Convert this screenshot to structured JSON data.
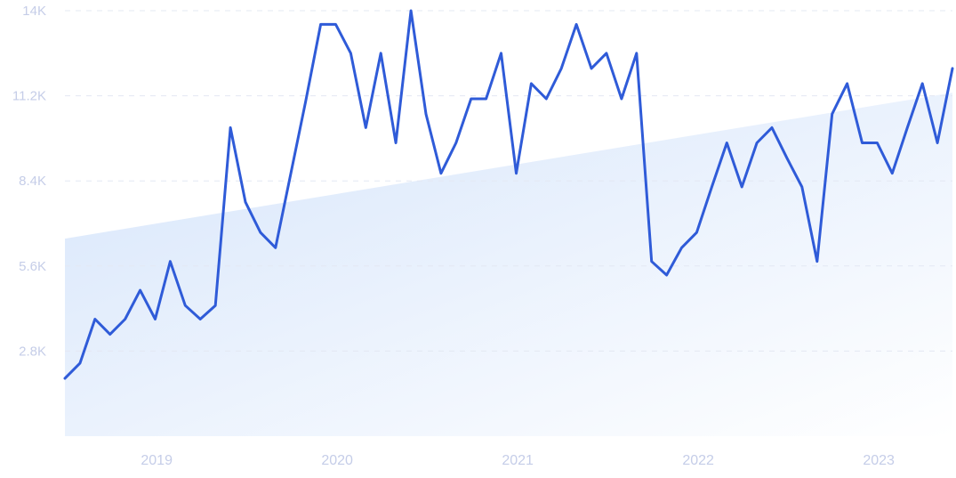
{
  "chart_data": {
    "type": "line",
    "title": "",
    "xlabel": "",
    "ylabel": "",
    "ylim": [
      0,
      14000
    ],
    "y_ticks": [
      {
        "value": 2800,
        "label": "2.8K"
      },
      {
        "value": 5600,
        "label": "5.6K"
      },
      {
        "value": 8400,
        "label": "8.4K"
      },
      {
        "value": 11200,
        "label": "11.2K"
      },
      {
        "value": 14000,
        "label": "14K"
      }
    ],
    "x_ticks": [
      "2019",
      "2020",
      "2021",
      "2022",
      "2023"
    ],
    "x_start": "2018-10",
    "grid": true,
    "legend": "none",
    "colors": {
      "line": "#2f5bd8",
      "trend_fill": "#dbe8fb",
      "tick_text": "#c5cde8",
      "grid": "#e3e8f3"
    },
    "trend": {
      "start_value": 6500,
      "end_value": 11300
    },
    "series": [
      {
        "name": "",
        "values": [
          1900,
          2400,
          3850,
          3350,
          3850,
          4800,
          3850,
          5750,
          4300,
          3850,
          4300,
          10150,
          7700,
          6700,
          6200,
          8600,
          11000,
          13550,
          13550,
          12600,
          10150,
          12600,
          9650,
          14000,
          10600,
          8650,
          9650,
          11100,
          11100,
          12600,
          8650,
          11600,
          11100,
          12100,
          13550,
          12100,
          12600,
          11100,
          12600,
          5750,
          5300,
          6200,
          6700,
          8200,
          9650,
          8200,
          9650,
          10150,
          9150,
          8200,
          5750,
          10600,
          11600,
          9650,
          9650,
          8650,
          10150,
          11600,
          9650,
          12100
        ]
      }
    ]
  }
}
